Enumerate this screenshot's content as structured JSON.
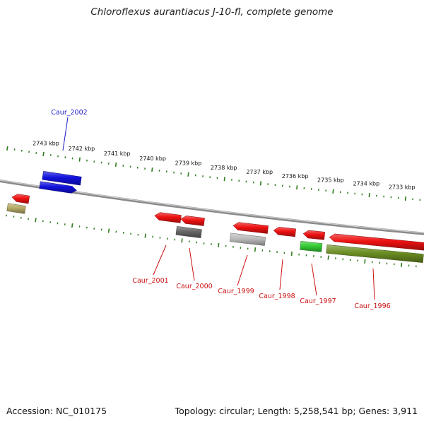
{
  "title": "Chloroflexus aurantiacus J-10-fl, complete genome",
  "footer": {
    "accession": "Accession: NC_010175",
    "summary": "Topology: circular; Length: 5,258,541 bp; Genes: 3,911"
  },
  "colors": {
    "backbone": "#8a8a8a",
    "tick": "#2e7d1e",
    "label_forward": "#1a1acc",
    "label_reverse": "#cc1111",
    "cds": "#ee1111",
    "cds_forward": "#1111dd",
    "cog_gray": "#666666",
    "cog_lightgray": "#bbbbbb",
    "cog_green": "#33cc33",
    "cog_olive": "#6b8e23",
    "cog_khaki": "#b5aa66"
  },
  "scale_labels": [
    "2743 kbp",
    "2742 kbp",
    "2741 kbp",
    "2740 kbp",
    "2739 kbp",
    "2738 kbp",
    "2737 kbp",
    "2736 kbp",
    "2735 kbp",
    "2734 kbp",
    "2733 kbp"
  ],
  "genes": [
    {
      "label": "Caur_2002",
      "strand": "forward"
    },
    {
      "label": "Caur_2001",
      "strand": "reverse"
    },
    {
      "label": "Caur_2000",
      "strand": "reverse"
    },
    {
      "label": "Caur_1999",
      "strand": "reverse"
    },
    {
      "label": "Caur_1998",
      "strand": "reverse"
    },
    {
      "label": "Caur_1997",
      "strand": "reverse"
    },
    {
      "label": "Caur_1996",
      "strand": "reverse"
    }
  ]
}
